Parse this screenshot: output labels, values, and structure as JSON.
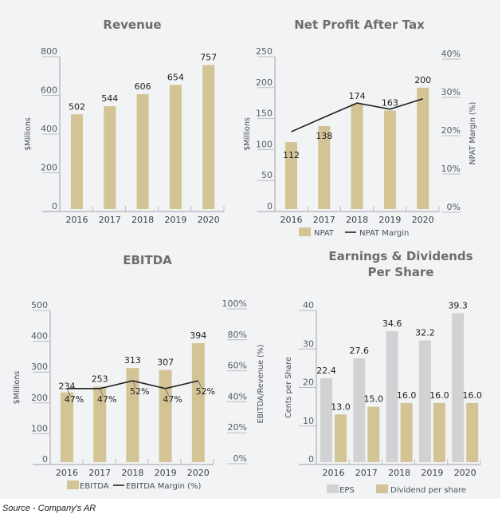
{
  "colors": {
    "gold": "#d2c494",
    "grey_bar": "#d0d2d4",
    "line": "#222222",
    "axis": "#b9bcc0",
    "panel_bg": "#f2f3f5"
  },
  "source_note": "Source - Company's AR",
  "chart_data": [
    {
      "id": "revenue",
      "type": "bar",
      "title": "Revenue",
      "ylabel": "$Millions",
      "categories": [
        "2016",
        "2017",
        "2018",
        "2019",
        "2020"
      ],
      "ylim": [
        0,
        800
      ],
      "yticks": [
        0,
        200,
        400,
        600,
        800
      ],
      "series": [
        {
          "name": "Revenue",
          "values": [
            502,
            544,
            606,
            654,
            757
          ],
          "color": "gold",
          "labels": [
            "502",
            "544",
            "606",
            "654",
            "757"
          ]
        }
      ],
      "legend": null
    },
    {
      "id": "npat",
      "type": "bar+line",
      "title": "Net Profit After Tax",
      "ylabel": "$Millions",
      "y2label": "NPAT Margin (%)",
      "categories": [
        "2016",
        "2017",
        "2018",
        "2019",
        "2020"
      ],
      "ylim": [
        0,
        250
      ],
      "yticks": [
        0,
        50,
        100,
        150,
        200,
        250
      ],
      "y2lim": [
        0,
        40
      ],
      "y2ticks": [
        "0%",
        "10%",
        "20%",
        "30%",
        "40%"
      ],
      "series": [
        {
          "name": "NPAT",
          "values": [
            112,
            138,
            174,
            163,
            200
          ],
          "color": "gold",
          "labels": [
            "112",
            "138",
            "174",
            "163",
            "200"
          ]
        }
      ],
      "line": {
        "name": "NPAT Margin",
        "values": [
          20.4,
          24.2,
          27.9,
          26.3,
          29.0
        ]
      },
      "legend": [
        {
          "type": "box",
          "label": "NPAT"
        },
        {
          "type": "line",
          "label": "NPAT Margin"
        }
      ],
      "legend_position": "bottom"
    },
    {
      "id": "ebitda",
      "type": "bar+line",
      "title": "EBITDA",
      "ylabel": "$Millions",
      "y2label": "EBITDA/Revenue (%)",
      "categories": [
        "2016",
        "2017",
        "2018",
        "2019",
        "2020"
      ],
      "ylim": [
        0,
        500
      ],
      "yticks": [
        0,
        100,
        200,
        300,
        400,
        500
      ],
      "y2lim": [
        0,
        100
      ],
      "y2ticks": [
        "0%",
        "20%",
        "40%",
        "60%",
        "80%",
        "100%"
      ],
      "series": [
        {
          "name": "EBITDA",
          "values": [
            234,
            253,
            313,
            307,
            394
          ],
          "color": "gold",
          "labels": [
            "234",
            "253",
            "313",
            "307",
            "394"
          ]
        }
      ],
      "line": {
        "name": "EBITDA Margin (%)",
        "values": [
          47,
          47,
          52,
          47,
          52
        ],
        "labels": [
          "47%",
          "47%",
          "52%",
          "47%",
          "52%"
        ]
      },
      "legend": [
        {
          "type": "box",
          "label": "EBITDA"
        },
        {
          "type": "line",
          "label": "EBITDA Margin (%)"
        }
      ],
      "legend_position": "bottom"
    },
    {
      "id": "eps",
      "type": "bar",
      "title": "Earnings & Dividends",
      "title2": "Per Share",
      "ylabel": "Cents per Share",
      "categories": [
        "2016",
        "2017",
        "2018",
        "2019",
        "2020"
      ],
      "ylim": [
        0,
        40
      ],
      "yticks": [
        0,
        10,
        20,
        30,
        40
      ],
      "series": [
        {
          "name": "EPS",
          "values": [
            22.4,
            27.6,
            34.6,
            32.2,
            39.3
          ],
          "color": "grey_bar",
          "labels": [
            "22.4",
            "27.6",
            "34.6",
            "32.2",
            "39.3"
          ]
        },
        {
          "name": "Dividend per share",
          "values": [
            13.0,
            15.0,
            16.0,
            16.0,
            16.0
          ],
          "color": "gold",
          "labels": [
            "13.0",
            "15.0",
            "16.0",
            "16.0",
            "16.0"
          ]
        }
      ],
      "legend": [
        {
          "type": "box",
          "label": "EPS",
          "color": "grey_bar"
        },
        {
          "type": "box",
          "label": "Dividend per share",
          "color": "gold"
        }
      ],
      "legend_position": "bottom"
    }
  ]
}
